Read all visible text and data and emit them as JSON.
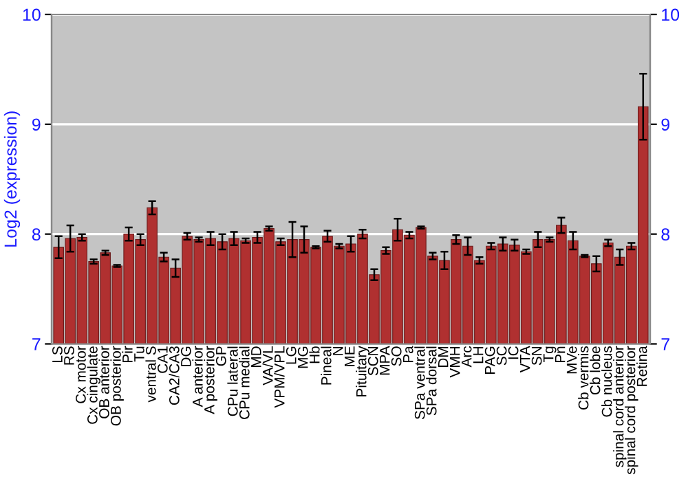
{
  "chart_data": {
    "type": "bar",
    "ylabel": "Log2 (expression)",
    "categories": [
      "LS",
      "RS",
      "Cx motor",
      "Cx cingulate",
      "OB anterior",
      "OB posterior",
      "Pir",
      "Tu",
      "ventral S",
      "CA1",
      "CA2/CA3",
      "DG",
      "A anterior",
      "A posterior",
      "GP",
      "CPu lateral",
      "CPu medial",
      "MD",
      "VA/VL",
      "VPM/VPL",
      "LG",
      "MG",
      "Hb",
      "Pineal",
      "N",
      "ME",
      "Pituitary",
      "SCN",
      "MPA",
      "SO",
      "Pa",
      "SPa ventral",
      "SPa dorsal",
      "DM",
      "VMH",
      "Arc",
      "LH",
      "PAG",
      "SC",
      "IC",
      "VTA",
      "SN",
      "Tg",
      "Pn",
      "MVe",
      "Cb vermis",
      "Cb lobe",
      "Cb nucleus",
      "spinal cord anterior",
      "spinal cord posterior",
      "Retina"
    ],
    "values": [
      7.88,
      7.96,
      7.97,
      7.75,
      7.83,
      7.71,
      8.0,
      7.95,
      8.24,
      7.79,
      7.69,
      7.98,
      7.95,
      7.96,
      7.93,
      7.96,
      7.94,
      7.97,
      8.05,
      7.93,
      7.95,
      7.95,
      7.88,
      7.98,
      7.89,
      7.91,
      8.0,
      7.63,
      7.85,
      8.04,
      7.99,
      8.06,
      7.8,
      7.76,
      7.95,
      7.89,
      7.76,
      7.89,
      7.91,
      7.9,
      7.84,
      7.95,
      7.95,
      8.08,
      7.94,
      7.8,
      7.73,
      7.92,
      7.79,
      7.89,
      9.16
    ],
    "errors": [
      0.1,
      0.12,
      0.03,
      0.02,
      0.02,
      0.01,
      0.06,
      0.05,
      0.06,
      0.04,
      0.08,
      0.03,
      0.02,
      0.06,
      0.07,
      0.06,
      0.02,
      0.05,
      0.02,
      0.03,
      0.16,
      0.12,
      0.01,
      0.05,
      0.02,
      0.07,
      0.04,
      0.05,
      0.03,
      0.1,
      0.03,
      0.01,
      0.03,
      0.08,
      0.04,
      0.08,
      0.03,
      0.03,
      0.06,
      0.05,
      0.02,
      0.07,
      0.02,
      0.07,
      0.08,
      0.01,
      0.07,
      0.03,
      0.07,
      0.03,
      0.3
    ],
    "color": "#b03030",
    "ylim": [
      7,
      10
    ],
    "yticks": [
      7,
      8,
      9,
      10
    ],
    "y2lim": [
      7,
      10
    ],
    "y2ticks": [
      7,
      8,
      9,
      10
    ],
    "grid": "y"
  }
}
